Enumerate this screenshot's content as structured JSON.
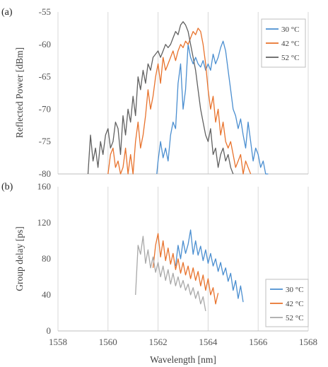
{
  "chart_data": [
    {
      "panel": "(a)",
      "type": "line",
      "title": "",
      "xlabel": "",
      "ylabel": "Reflected Power [dBm]",
      "xlim": [
        1558,
        1568
      ],
      "ylim": [
        -80,
        -55
      ],
      "yticks": [
        "-55",
        "-60",
        "-65",
        "-70",
        "-75",
        "-80"
      ],
      "ytick_values": [
        -55,
        -60,
        -65,
        -70,
        -75,
        -80
      ],
      "xgrid": true,
      "ygrid": false,
      "legend_position": "top-right",
      "series": [
        {
          "name": "30 °C",
          "color": "#4a8ed0",
          "x": [
            1561.95,
            1562.0,
            1562.1,
            1562.2,
            1562.3,
            1562.4,
            1562.5,
            1562.6,
            1562.7,
            1562.8,
            1562.9,
            1563.0,
            1563.1,
            1563.2,
            1563.3,
            1563.4,
            1563.5,
            1563.6,
            1563.7,
            1563.8,
            1563.9,
            1564.0,
            1564.1,
            1564.2,
            1564.3,
            1564.4,
            1564.5,
            1564.6,
            1564.7,
            1564.8,
            1564.9,
            1565.0,
            1565.1,
            1565.2,
            1565.3,
            1565.4,
            1565.5,
            1565.6,
            1565.7,
            1565.8,
            1565.9,
            1566.0,
            1566.1,
            1566.2,
            1566.3,
            1566.4
          ],
          "y": [
            -80,
            -78,
            -75,
            -77.5,
            -76,
            -78,
            -74,
            -72,
            -73,
            -66,
            -63,
            -70,
            -67,
            -60,
            -62,
            -63,
            -62,
            -63,
            -63.5,
            -62.5,
            -64,
            -63,
            -64,
            -61.5,
            -63,
            -62,
            -60.5,
            -59.5,
            -61,
            -64,
            -67,
            -70,
            -71,
            -73,
            -71.5,
            -74,
            -76,
            -72,
            -75,
            -78,
            -76,
            -77,
            -79,
            -78,
            -80,
            -80
          ]
        },
        {
          "name": "42 °C",
          "color": "#e8722c",
          "x": [
            1560.0,
            1560.1,
            1560.2,
            1560.3,
            1560.4,
            1560.5,
            1560.6,
            1560.7,
            1560.8,
            1560.9,
            1561.0,
            1561.1,
            1561.2,
            1561.3,
            1561.4,
            1561.5,
            1561.6,
            1561.7,
            1561.8,
            1561.9,
            1562.0,
            1562.1,
            1562.2,
            1562.3,
            1562.4,
            1562.5,
            1562.6,
            1562.7,
            1562.8,
            1562.9,
            1563.0,
            1563.1,
            1563.2,
            1563.3,
            1563.4,
            1563.5,
            1563.6,
            1563.7,
            1563.8,
            1563.9,
            1564.0,
            1564.1,
            1564.2,
            1564.3,
            1564.4,
            1564.5,
            1564.6,
            1564.7,
            1564.8,
            1564.9,
            1565.0,
            1565.1,
            1565.2,
            1565.3,
            1565.4,
            1565.5,
            1565.6,
            1565.7
          ],
          "y": [
            -80,
            -77,
            -76,
            -79,
            -78,
            -80,
            -79,
            -76,
            -80,
            -77,
            -80,
            -75,
            -72,
            -76,
            -74,
            -71,
            -67,
            -70,
            -68,
            -65,
            -63,
            -66,
            -62,
            -64,
            -63,
            -62,
            -61,
            -62.5,
            -61,
            -60,
            -60.5,
            -59.5,
            -60,
            -59,
            -58,
            -58.5,
            -57.5,
            -58,
            -60,
            -63,
            -67,
            -70,
            -68,
            -72,
            -70,
            -74,
            -72,
            -75,
            -76,
            -75,
            -77,
            -79,
            -78,
            -77,
            -80,
            -78,
            -79,
            -80
          ]
        },
        {
          "name": "52 °C",
          "color": "#606060",
          "x": [
            1559.2,
            1559.3,
            1559.4,
            1559.5,
            1559.6,
            1559.7,
            1559.8,
            1559.9,
            1560.0,
            1560.1,
            1560.2,
            1560.3,
            1560.4,
            1560.5,
            1560.6,
            1560.7,
            1560.8,
            1560.9,
            1561.0,
            1561.1,
            1561.2,
            1561.3,
            1561.4,
            1561.5,
            1561.6,
            1561.7,
            1561.8,
            1561.9,
            1562.0,
            1562.1,
            1562.2,
            1562.3,
            1562.4,
            1562.5,
            1562.6,
            1562.7,
            1562.8,
            1562.9,
            1563.0,
            1563.1,
            1563.2,
            1563.3,
            1563.4,
            1563.5,
            1563.6,
            1563.7,
            1563.8,
            1563.9,
            1564.0,
            1564.1,
            1564.2,
            1564.3,
            1564.4,
            1564.5,
            1564.6,
            1564.7,
            1564.8,
            1564.9,
            1565.0
          ],
          "y": [
            -80,
            -74,
            -78,
            -76,
            -79,
            -75,
            -77,
            -74,
            -73,
            -76,
            -75,
            -72,
            -73,
            -77,
            -71,
            -74,
            -70,
            -72,
            -68,
            -71,
            -65,
            -67,
            -64,
            -66,
            -63,
            -64,
            -62,
            -61.5,
            -61,
            -62,
            -61,
            -60,
            -60.5,
            -60,
            -59,
            -58,
            -58.5,
            -57,
            -56.5,
            -57,
            -58,
            -60,
            -62,
            -64,
            -67,
            -70,
            -72,
            -74,
            -75,
            -73,
            -77,
            -76,
            -79,
            -77,
            -76,
            -78,
            -77,
            -79,
            -80
          ]
        }
      ]
    },
    {
      "panel": "(b)",
      "type": "line",
      "title": "",
      "xlabel": "Wavelength [nm]",
      "ylabel": "Group delay [ps]",
      "xlim": [
        1558,
        1568
      ],
      "ylim": [
        0,
        160
      ],
      "xticks": [
        "1558",
        "1560",
        "1562",
        "1564",
        "1566",
        "1568"
      ],
      "xtick_values": [
        1558,
        1560,
        1562,
        1564,
        1566,
        1568
      ],
      "yticks": [
        "0",
        "40",
        "80",
        "120",
        "160"
      ],
      "ytick_values": [
        0,
        40,
        80,
        120,
        160
      ],
      "xgrid": true,
      "ygrid": false,
      "legend_position": "bottom-right",
      "series": [
        {
          "name": "30 °C",
          "color": "#4a8ed0",
          "x": [
            1562.7,
            1562.8,
            1562.9,
            1563.0,
            1563.1,
            1563.2,
            1563.3,
            1563.4,
            1563.5,
            1563.6,
            1563.7,
            1563.8,
            1563.9,
            1564.0,
            1564.1,
            1564.2,
            1564.3,
            1564.4,
            1564.5,
            1564.6,
            1564.7,
            1564.8,
            1564.9,
            1565.0,
            1565.1,
            1565.2,
            1565.3,
            1565.4
          ],
          "y": [
            72,
            95,
            80,
            100,
            86,
            96,
            112,
            85,
            100,
            84,
            94,
            78,
            90,
            75,
            86,
            72,
            80,
            66,
            76,
            62,
            70,
            55,
            64,
            45,
            56,
            36,
            50,
            32
          ]
        },
        {
          "name": "42 °C",
          "color": "#e8722c",
          "x": [
            1561.8,
            1561.9,
            1562.0,
            1562.1,
            1562.2,
            1562.3,
            1562.4,
            1562.5,
            1562.6,
            1562.7,
            1562.8,
            1562.9,
            1563.0,
            1563.1,
            1563.2,
            1563.3,
            1563.4,
            1563.5,
            1563.6,
            1563.7,
            1563.8,
            1563.9,
            1564.0,
            1564.1,
            1564.2,
            1564.3,
            1564.4
          ],
          "y": [
            70,
            95,
            108,
            82,
            100,
            78,
            92,
            74,
            86,
            68,
            80,
            64,
            76,
            62,
            72,
            58,
            70,
            56,
            66,
            50,
            62,
            45,
            58,
            40,
            48,
            30,
            42
          ]
        },
        {
          "name": "52 °C",
          "color": "#a8a8a8",
          "x": [
            1561.1,
            1561.2,
            1561.3,
            1561.4,
            1561.5,
            1561.6,
            1561.7,
            1561.8,
            1561.9,
            1562.0,
            1562.1,
            1562.2,
            1562.3,
            1562.4,
            1562.5,
            1562.6,
            1562.7,
            1562.8,
            1562.9,
            1563.0,
            1563.1,
            1563.2,
            1563.3,
            1563.4,
            1563.5,
            1563.6,
            1563.7,
            1563.8,
            1563.9
          ],
          "y": [
            40,
            95,
            85,
            105,
            75,
            90,
            70,
            82,
            65,
            76,
            60,
            72,
            56,
            68,
            52,
            64,
            50,
            60,
            48,
            56,
            45,
            52,
            40,
            48,
            36,
            44,
            30,
            38,
            22
          ]
        }
      ]
    }
  ]
}
